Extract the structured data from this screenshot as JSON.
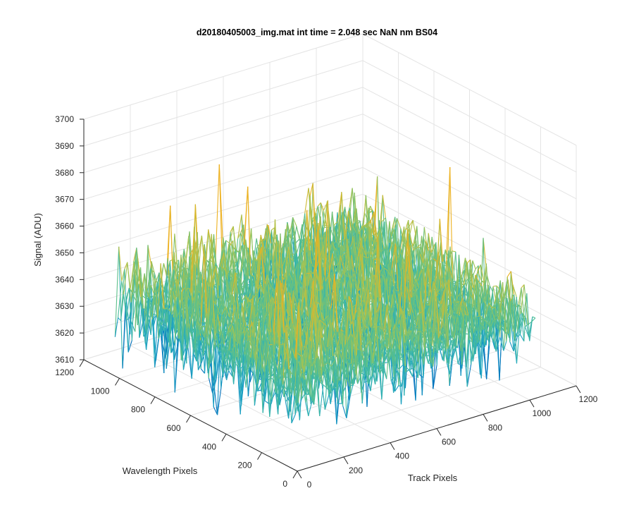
{
  "figure": {
    "background": "#ffffff"
  },
  "chart_data": {
    "type": "surface",
    "title": "d20180405003_img.mat int time = 2.048 sec  NaN nm BS04",
    "xlabel": "Track Pixels",
    "ylabel": "Wavelength Pixels",
    "zlabel": "Signal (ADU)",
    "xlim": [
      0,
      1200
    ],
    "ylim": [
      0,
      1200
    ],
    "zlim": [
      3610,
      3700
    ],
    "x_ticks": [
      "0",
      "200",
      "400",
      "600",
      "800",
      "1000",
      "1200"
    ],
    "y_ticks": [
      "0",
      "200",
      "400",
      "600",
      "800",
      "1000",
      "1200"
    ],
    "z_ticks": [
      "3610",
      "3620",
      "3630",
      "3640",
      "3650",
      "3660",
      "3670",
      "3680",
      "3690",
      "3700"
    ],
    "x_data_range": [
      0,
      1024
    ],
    "y_data_range": [
      0,
      1024
    ],
    "z_mean": 3640,
    "z_noise_sd": 8,
    "z_observed_range": [
      3612,
      3698
    ],
    "grid": true,
    "colormap": "parula",
    "colormap_stops": [
      "#0072bd",
      "#22a8c4",
      "#4fbf95",
      "#a8c450",
      "#edb120"
    ]
  }
}
